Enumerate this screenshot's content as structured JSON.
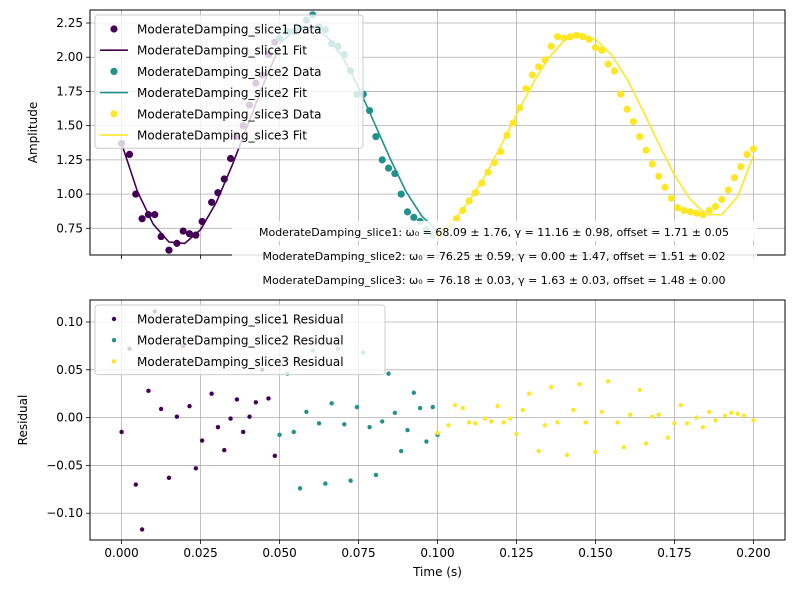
{
  "colors": {
    "slice1": "#440154",
    "slice2": "#21918c",
    "slice3": "#fde725",
    "grid": "#b0b0b0",
    "axis": "#000000"
  },
  "chart_data": [
    {
      "type": "scatter",
      "panel": "top",
      "xlabel": "",
      "ylabel": "Amplitude",
      "xlim": [
        -0.01,
        0.21
      ],
      "ylim": [
        0.555,
        2.345
      ],
      "xticks": [
        0.0,
        0.025,
        0.05,
        0.075,
        0.1,
        0.125,
        0.15,
        0.175,
        0.2
      ],
      "yticks": [
        0.75,
        1.0,
        1.25,
        1.5,
        1.75,
        2.0,
        2.25
      ],
      "ytick_labels": [
        "0.75",
        "1.00",
        "1.25",
        "1.50",
        "1.75",
        "2.00",
        "2.25"
      ],
      "grid": true,
      "legend_position": "top-left",
      "legend": [
        "ModerateDamping_slice1 Data",
        "ModerateDamping_slice1 Fit",
        "ModerateDamping_slice2 Data",
        "ModerateDamping_slice2 Fit",
        "ModerateDamping_slice3 Data",
        "ModerateDamping_slice3 Fit"
      ],
      "annotations": [
        "ModerateDamping_slice1: ω₀ = 68.09 ± 1.76, γ = 11.16 ± 0.98, offset = 1.71 ± 0.05",
        "ModerateDamping_slice2: ω₀ = 76.25 ± 0.59, γ = 0.00 ± 1.47, offset = 1.51 ± 0.02",
        "ModerateDamping_slice3: ω₀ = 76.18 ± 0.03, γ = 1.63 ± 0.03, offset = 1.48 ± 0.00"
      ],
      "series": [
        {
          "name": "ModerateDamping_slice1 Data",
          "kind": "points",
          "x": [
            0.0,
            0.0025,
            0.0045,
            0.0065,
            0.0085,
            0.0105,
            0.0125,
            0.015,
            0.0175,
            0.0195,
            0.0215,
            0.0235,
            0.0255,
            0.0285,
            0.0305,
            0.0325,
            0.0345,
            0.0365,
            0.0385,
            0.0405,
            0.0425,
            0.0445,
            0.0465,
            0.0485
          ],
          "y": [
            1.37,
            1.29,
            1.0,
            0.82,
            0.85,
            0.85,
            0.69,
            0.59,
            0.64,
            0.73,
            0.71,
            0.7,
            0.8,
            0.94,
            1.01,
            1.11,
            1.26,
            1.42,
            1.5,
            1.65,
            1.81,
            1.87,
            2.02,
            2.11
          ]
        },
        {
          "name": "ModerateDamping_slice1 Fit",
          "kind": "line",
          "x": [
            0.0,
            0.005,
            0.01,
            0.015,
            0.02,
            0.025,
            0.03,
            0.035,
            0.04,
            0.045,
            0.05
          ],
          "y": [
            1.37,
            1.02,
            0.78,
            0.65,
            0.64,
            0.74,
            0.94,
            1.21,
            1.51,
            1.81,
            2.08
          ]
        },
        {
          "name": "ModerateDamping_slice2 Data",
          "kind": "points",
          "x": [
            0.05,
            0.0525,
            0.0545,
            0.0565,
            0.0585,
            0.0605,
            0.0625,
            0.0645,
            0.0665,
            0.0685,
            0.0705,
            0.0725,
            0.0745,
            0.0765,
            0.0785,
            0.0805,
            0.0825,
            0.0845,
            0.0865,
            0.0885,
            0.0905,
            0.0925,
            0.0945,
            0.0965,
            0.0985,
            0.1
          ],
          "y": [
            2.14,
            2.19,
            2.19,
            2.21,
            2.27,
            2.31,
            2.22,
            2.2,
            2.1,
            2.08,
            2.02,
            1.9,
            1.73,
            1.73,
            1.61,
            1.42,
            1.25,
            1.19,
            1.15,
            1.0,
            0.87,
            0.83,
            0.8,
            0.74,
            0.7,
            0.71
          ]
        },
        {
          "name": "ModerateDamping_slice2 Fit",
          "kind": "line",
          "x": [
            0.05,
            0.055,
            0.06,
            0.065,
            0.07,
            0.075,
            0.08,
            0.085,
            0.09,
            0.095,
            0.1
          ],
          "y": [
            2.1,
            2.2,
            2.22,
            2.15,
            2.0,
            1.78,
            1.52,
            1.26,
            1.02,
            0.84,
            0.73
          ]
        },
        {
          "name": "ModerateDamping_slice3 Data",
          "kind": "points",
          "x": [
            0.1,
            0.102,
            0.104,
            0.106,
            0.108,
            0.11,
            0.112,
            0.114,
            0.116,
            0.118,
            0.12,
            0.122,
            0.124,
            0.126,
            0.128,
            0.13,
            0.132,
            0.134,
            0.136,
            0.138,
            0.14,
            0.142,
            0.144,
            0.146,
            0.148,
            0.15,
            0.152,
            0.154,
            0.156,
            0.158,
            0.16,
            0.162,
            0.164,
            0.166,
            0.168,
            0.17,
            0.172,
            0.174,
            0.176,
            0.178,
            0.18,
            0.182,
            0.184,
            0.186,
            0.188,
            0.19,
            0.192,
            0.194,
            0.196,
            0.198,
            0.2
          ],
          "y": [
            0.7,
            0.74,
            0.78,
            0.82,
            0.88,
            0.95,
            1.01,
            1.08,
            1.16,
            1.23,
            1.31,
            1.43,
            1.52,
            1.63,
            1.77,
            1.87,
            1.93,
            1.98,
            2.08,
            2.15,
            2.14,
            2.15,
            2.16,
            2.15,
            2.13,
            2.07,
            2.05,
            1.95,
            1.9,
            1.73,
            1.62,
            1.53,
            1.42,
            1.32,
            1.22,
            1.13,
            1.05,
            0.97,
            0.9,
            0.88,
            0.87,
            0.86,
            0.85,
            0.88,
            0.91,
            0.96,
            1.03,
            1.12,
            1.2,
            1.29,
            1.33
          ]
        },
        {
          "name": "ModerateDamping_slice3 Fit",
          "kind": "line",
          "x": [
            0.1,
            0.105,
            0.11,
            0.115,
            0.12,
            0.125,
            0.13,
            0.135,
            0.14,
            0.145,
            0.15,
            0.155,
            0.16,
            0.165,
            0.17,
            0.175,
            0.18,
            0.185,
            0.19,
            0.195,
            0.2
          ],
          "y": [
            0.71,
            0.8,
            0.95,
            1.13,
            1.35,
            1.58,
            1.8,
            1.99,
            2.12,
            2.17,
            2.13,
            2.02,
            1.84,
            1.61,
            1.37,
            1.14,
            0.96,
            0.85,
            0.85,
            0.98,
            1.28
          ]
        }
      ]
    },
    {
      "type": "scatter",
      "panel": "bottom",
      "xlabel": "Time (s)",
      "ylabel": "Residual",
      "xlim": [
        -0.01,
        0.21
      ],
      "ylim": [
        -0.128,
        0.123
      ],
      "xticks": [
        0.0,
        0.025,
        0.05,
        0.075,
        0.1,
        0.125,
        0.15,
        0.175,
        0.2
      ],
      "xtick_labels": [
        "0.000",
        "0.025",
        "0.050",
        "0.075",
        "0.100",
        "0.125",
        "0.150",
        "0.175",
        "0.200"
      ],
      "yticks": [
        -0.1,
        -0.05,
        0.0,
        0.05,
        0.1
      ],
      "ytick_labels": [
        "−0.10",
        "−0.05",
        "0.00",
        "0.05",
        "0.10"
      ],
      "grid": true,
      "legend_position": "top-left",
      "legend": [
        "ModerateDamping_slice1 Residual",
        "ModerateDamping_slice2 Residual",
        "ModerateDamping_slice3 Residual"
      ],
      "series": [
        {
          "name": "ModerateDamping_slice1 Residual",
          "x": [
            0.0,
            0.0025,
            0.0045,
            0.0065,
            0.0085,
            0.0105,
            0.0125,
            0.015,
            0.0175,
            0.0195,
            0.0215,
            0.0235,
            0.0255,
            0.0285,
            0.0305,
            0.0325,
            0.0345,
            0.0365,
            0.0385,
            0.0405,
            0.0425,
            0.0445,
            0.0465,
            0.0485
          ],
          "y": [
            -0.015,
            0.072,
            -0.07,
            -0.117,
            0.028,
            0.111,
            0.009,
            -0.063,
            0.001,
            0.075,
            0.012,
            -0.053,
            -0.024,
            0.025,
            -0.01,
            -0.034,
            -0.001,
            0.019,
            -0.015,
            0.001,
            0.016,
            0.05,
            0.02,
            -0.04
          ]
        },
        {
          "name": "ModerateDamping_slice2 Residual",
          "x": [
            0.05,
            0.0525,
            0.0545,
            0.0565,
            0.0585,
            0.0605,
            0.0625,
            0.0645,
            0.0665,
            0.0685,
            0.0705,
            0.0725,
            0.0745,
            0.0765,
            0.0785,
            0.0805,
            0.0825,
            0.0845,
            0.0865,
            0.0885,
            0.0905,
            0.0925,
            0.0945,
            0.0965,
            0.0985,
            0.1
          ],
          "y": [
            -0.018,
            0.046,
            -0.015,
            -0.074,
            0.006,
            0.07,
            -0.006,
            -0.069,
            0.015,
            0.072,
            -0.007,
            -0.066,
            0.011,
            0.068,
            -0.01,
            -0.06,
            -0.004,
            0.046,
            0.005,
            -0.035,
            -0.013,
            0.026,
            0.01,
            -0.025,
            0.011,
            -0.018
          ]
        },
        {
          "name": "ModerateDamping_slice3 Residual",
          "x": [
            0.1,
            0.1035,
            0.1055,
            0.108,
            0.11,
            0.112,
            0.115,
            0.117,
            0.119,
            0.121,
            0.123,
            0.125,
            0.127,
            0.129,
            0.132,
            0.134,
            0.136,
            0.138,
            0.141,
            0.143,
            0.145,
            0.147,
            0.15,
            0.152,
            0.154,
            0.157,
            0.159,
            0.161,
            0.164,
            0.166,
            0.168,
            0.17,
            0.173,
            0.175,
            0.177,
            0.179,
            0.182,
            0.184,
            0.186,
            0.188,
            0.191,
            0.193,
            0.195,
            0.197,
            0.2
          ],
          "y": [
            -0.016,
            -0.008,
            0.013,
            0.01,
            -0.005,
            -0.006,
            -0.001,
            -0.004,
            0.012,
            -0.005,
            -0.001,
            -0.017,
            0.008,
            0.025,
            -0.035,
            -0.008,
            0.032,
            -0.005,
            -0.039,
            0.008,
            0.035,
            -0.005,
            -0.036,
            0.006,
            0.038,
            -0.005,
            -0.031,
            0.003,
            0.029,
            -0.027,
            0.001,
            0.003,
            -0.021,
            -0.006,
            0.013,
            -0.006,
            0.0,
            -0.01,
            0.006,
            -0.003,
            0.002,
            0.005,
            0.004,
            0.002,
            -0.003
          ]
        }
      ]
    }
  ]
}
